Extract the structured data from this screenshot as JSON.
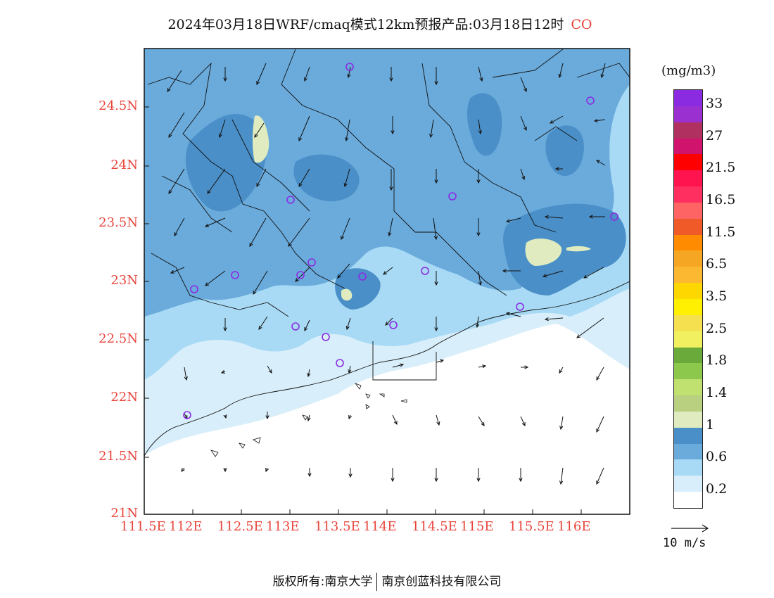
{
  "title": {
    "text": "2024年03月18日WRF/cmaq模式12km预报产品:03月18日12时",
    "species": "CO"
  },
  "map": {
    "lat_ticks": [
      "24.5N",
      "24N",
      "23.5N",
      "23N",
      "22.5N",
      "22N",
      "21.5N",
      "21N"
    ],
    "lon_ticks": [
      "111.5E",
      "112E",
      "112.5E",
      "113E",
      "113.5E",
      "114E",
      "114.5E",
      "115E",
      "115.5E",
      "116E"
    ],
    "axis_label_color": "#e8453c",
    "station_marker_color": "#8a2be2"
  },
  "legend": {
    "unit": "(mg/m3)",
    "labels": [
      "33",
      "27",
      "21.5",
      "16.5",
      "11.5",
      "6.5",
      "3.5",
      "2.5",
      "1.8",
      "1.4",
      "1",
      "0.6",
      "0.2"
    ],
    "colors": [
      "#8a2be2",
      "#9b30d0",
      "#b03060",
      "#d0146e",
      "#ff0000",
      "#ff1450",
      "#ff3060",
      "#ff6464",
      "#f05a28",
      "#ff8c00",
      "#f5a623",
      "#fcb830",
      "#ffd700",
      "#ffef00",
      "#f5e050",
      "#f0f060",
      "#6aaa3a",
      "#8cc84b",
      "#c0e070",
      "#b8d080",
      "#e0ecc0",
      "#4a8fc8",
      "#6aabdc",
      "#a8daf5",
      "#d8eefa",
      "#ffffff"
    ]
  },
  "vector_reference": {
    "label": "10 m/s"
  },
  "footer": {
    "left": "版权所有:南京大学",
    "right": "南京创蓝科技有限公司"
  }
}
